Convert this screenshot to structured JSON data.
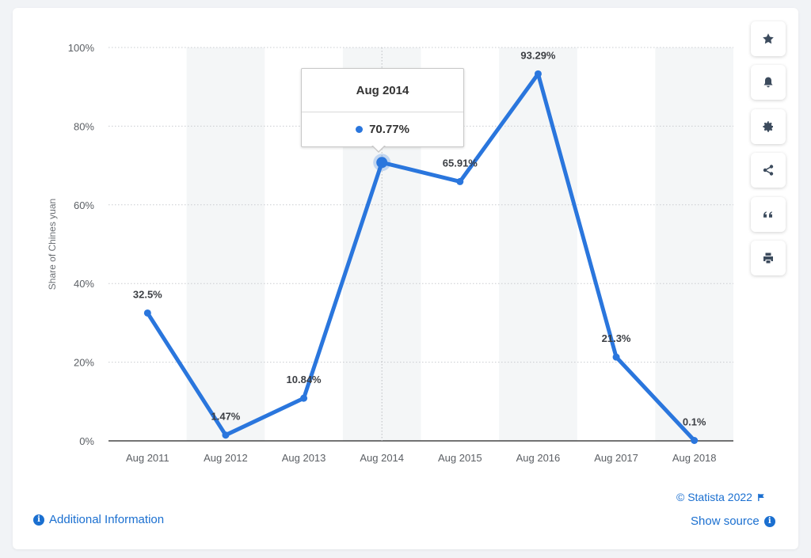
{
  "chart_data": {
    "type": "line",
    "categories": [
      "Aug 2011",
      "Aug 2012",
      "Aug 2013",
      "Aug 2014",
      "Aug 2015",
      "Aug 2016",
      "Aug 2017",
      "Aug 2018"
    ],
    "series": [
      {
        "values": [
          32.5,
          1.47,
          10.84,
          70.77,
          65.91,
          93.29,
          21.3,
          0.1
        ],
        "labels": [
          "32.5%",
          "1.47%",
          "10.84%",
          "70.77%",
          "65.91%",
          "93.29%",
          "21.3%",
          "0.1%"
        ],
        "color": "#2a76dd"
      }
    ],
    "ylabel": "Share of Chines yuan",
    "xlabel": "",
    "ylim": [
      0,
      100
    ],
    "yticks": [
      "0%",
      "20%",
      "40%",
      "60%",
      "80%",
      "100%"
    ],
    "grid": true,
    "highlighted_index": 3
  },
  "tooltip": {
    "title": "Aug 2014",
    "value": "70.77%"
  },
  "footer": {
    "additional_info": "Additional Information",
    "copyright": "© Statista 2022",
    "show_source": "Show source"
  },
  "toolbar": {
    "icons": [
      "star-icon",
      "bell-icon",
      "gear-icon",
      "share-icon",
      "quote-icon",
      "print-icon"
    ]
  },
  "colors": {
    "accent": "#2a76dd",
    "link": "#1a6fd0",
    "band": "#f4f6f7"
  }
}
